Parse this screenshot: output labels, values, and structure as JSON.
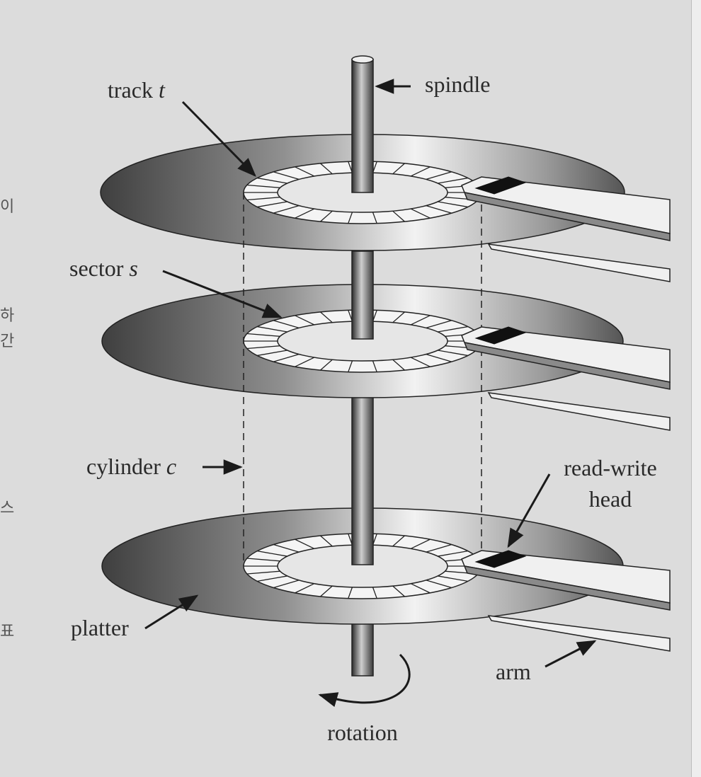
{
  "diagram": {
    "labels": {
      "track": "track",
      "track_var": "t",
      "spindle": "spindle",
      "sector": "sector",
      "sector_var": "s",
      "cylinder": "cylinder",
      "cylinder_var": "c",
      "read_write_1": "read-write",
      "read_write_2": "head",
      "platter": "platter",
      "arm": "arm",
      "rotation": "rotation"
    },
    "left_edge_fragments": [
      "이",
      "하",
      "간",
      "스",
      "표"
    ],
    "colors": {
      "background": "#dcdcdc",
      "ink": "#2a2a2a",
      "head": "#111111"
    }
  }
}
